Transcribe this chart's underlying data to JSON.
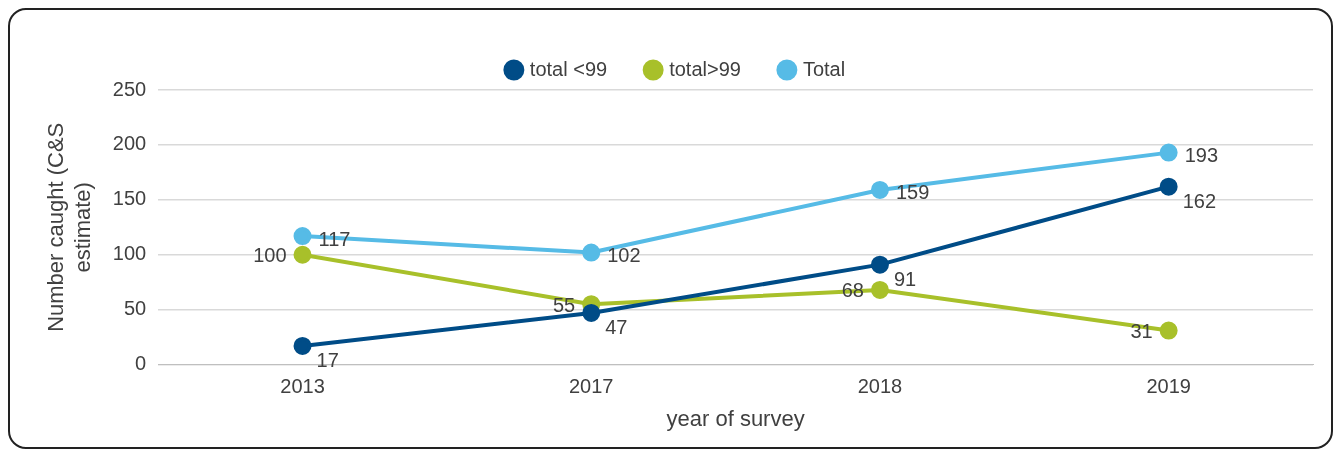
{
  "chart_data": {
    "type": "line",
    "xlabel": "year of survey",
    "ylabel": "Number caught (C&S estimate)",
    "categories": [
      "2013",
      "2017",
      "2018",
      "2019"
    ],
    "series": [
      {
        "name": "total <99",
        "color": "#004c87",
        "values": [
          17,
          47,
          91,
          162
        ]
      },
      {
        "name": "total>99",
        "color": "#a8c02a",
        "values": [
          100,
          55,
          68,
          31
        ]
      },
      {
        "name": "Total",
        "color": "#56bbe6",
        "values": [
          117,
          102,
          159,
          193
        ]
      }
    ],
    "ylim": [
      0,
      250
    ],
    "yticks": [
      0,
      50,
      100,
      150,
      200,
      250
    ],
    "grid": "y",
    "legend": "top",
    "marker": "circle",
    "line_style": "solid",
    "data_labels": true
  }
}
